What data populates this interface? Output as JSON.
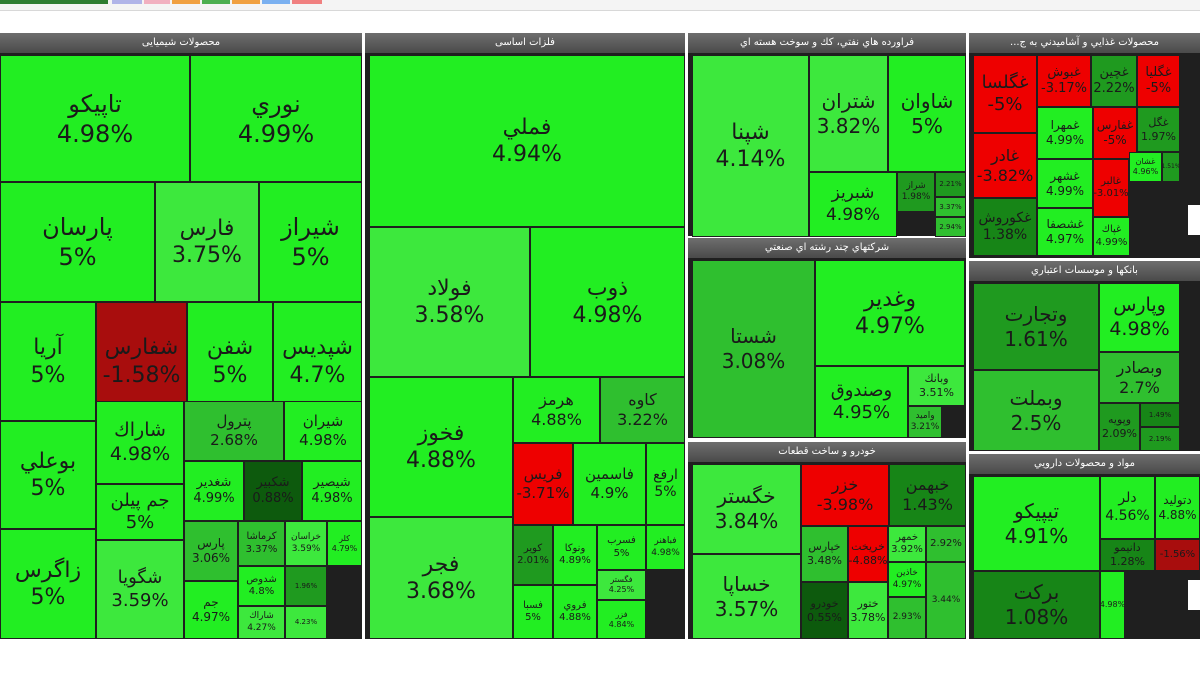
{
  "chart_data": {
    "type": "treemap",
    "title": "",
    "sectors": [
      {
        "name": "محصولات شیمیایی",
        "tiles": [
          {
            "symbol": "تاپيكو",
            "change": "4.98%",
            "value": 4.98
          },
          {
            "symbol": "نوري",
            "change": "4.99%",
            "value": 4.99
          },
          {
            "symbol": "پارسان",
            "change": "5%",
            "value": 5
          },
          {
            "symbol": "فارس",
            "change": "3.75%",
            "value": 3.75
          },
          {
            "symbol": "شيراز",
            "change": "5%",
            "value": 5
          },
          {
            "symbol": "آريا",
            "change": "5%",
            "value": 5
          },
          {
            "symbol": "شفارس",
            "change": "-1.58%",
            "value": -1.58
          },
          {
            "symbol": "شفن",
            "change": "5%",
            "value": 5
          },
          {
            "symbol": "شپديس",
            "change": "4.7%",
            "value": 4.7
          },
          {
            "symbol": "بوعلي",
            "change": "5%",
            "value": 5
          },
          {
            "symbol": "شاراك",
            "change": "4.98%",
            "value": 4.98
          },
          {
            "symbol": "پترول",
            "change": "2.68%",
            "value": 2.68
          },
          {
            "symbol": "شيران",
            "change": "4.98%",
            "value": 4.98
          },
          {
            "symbol": "جم پيلن",
            "change": "5%",
            "value": 5
          },
          {
            "symbol": "شغدير",
            "change": "4.99%",
            "value": 4.99
          },
          {
            "symbol": "شكبير",
            "change": "0.88%",
            "value": 0.88
          },
          {
            "symbol": "شيصير",
            "change": "4.98%",
            "value": 4.98
          },
          {
            "symbol": "زاگرس",
            "change": "5%",
            "value": 5
          },
          {
            "symbol": "شگويا",
            "change": "3.59%",
            "value": 3.59
          },
          {
            "symbol": "پارس",
            "change": "3.06%",
            "value": 3.06
          },
          {
            "symbol": "كرماشا",
            "change": "3.37%",
            "value": 3.37
          },
          {
            "symbol": "خراسان",
            "change": "3.59%",
            "value": 3.59
          },
          {
            "symbol": "كلر",
            "change": "4.79%",
            "value": 4.79
          },
          {
            "symbol": "شدوص",
            "change": "4.8%",
            "value": 4.8
          },
          {
            "symbol": "جم",
            "change": "4.97%",
            "value": 4.97
          },
          {
            "symbol": "شاراك",
            "change": "4.27%",
            "value": 4.27
          },
          {
            "symbol": "",
            "change": "1.96%",
            "value": 1.96
          },
          {
            "symbol": "",
            "change": "4.23%",
            "value": 4.23
          }
        ]
      },
      {
        "name": "فلزات اساسی",
        "tiles": [
          {
            "symbol": "فملي",
            "change": "4.94%",
            "value": 4.94
          },
          {
            "symbol": "فولاد",
            "change": "3.58%",
            "value": 3.58
          },
          {
            "symbol": "ذوب",
            "change": "4.98%",
            "value": 4.98
          },
          {
            "symbol": "فخوز",
            "change": "4.88%",
            "value": 4.88
          },
          {
            "symbol": "هرمز",
            "change": "4.88%",
            "value": 4.88
          },
          {
            "symbol": "كاوه",
            "change": "3.22%",
            "value": 3.22
          },
          {
            "symbol": "فريس",
            "change": "-3.71%",
            "value": -3.71
          },
          {
            "symbol": "فاسمين",
            "change": "4.9%",
            "value": 4.9
          },
          {
            "symbol": "ارفع",
            "change": "5%",
            "value": 5
          },
          {
            "symbol": "فجر",
            "change": "3.68%",
            "value": 3.68
          },
          {
            "symbol": "كوير",
            "change": "2.01%",
            "value": 2.01
          },
          {
            "symbol": "ونوكا",
            "change": "4.89%",
            "value": 4.89
          },
          {
            "symbol": "فسرب",
            "change": "5%",
            "value": 5
          },
          {
            "symbol": "فباهنر",
            "change": "4.98%",
            "value": 4.98
          },
          {
            "symbol": "فسبا",
            "change": "5%",
            "value": 5
          },
          {
            "symbol": "فروي",
            "change": "4.88%",
            "value": 4.88
          },
          {
            "symbol": "فگستر",
            "change": "4.25%",
            "value": 4.25
          },
          {
            "symbol": "فزر",
            "change": "4.84%",
            "value": 4.84
          }
        ]
      },
      {
        "name": "فراورده هاي نفتي، كك و سوخت هسته اي",
        "tiles": [
          {
            "symbol": "شپنا",
            "change": "4.14%",
            "value": 4.14
          },
          {
            "symbol": "شتران",
            "change": "3.82%",
            "value": 3.82
          },
          {
            "symbol": "شاوان",
            "change": "5%",
            "value": 5
          },
          {
            "symbol": "شبريز",
            "change": "4.98%",
            "value": 4.98
          },
          {
            "symbol": "شراز",
            "change": "1.98%",
            "value": 1.98
          },
          {
            "symbol": "",
            "change": "2.21%",
            "value": 2.21
          },
          {
            "symbol": "",
            "change": "3.37%",
            "value": 3.37
          },
          {
            "symbol": "",
            "change": "2.94%",
            "value": 2.94
          }
        ]
      },
      {
        "name": "محصولات غذايي و آشاميدني به ج...",
        "tiles": [
          {
            "symbol": "غگلسا",
            "change": "-5%",
            "value": -5
          },
          {
            "symbol": "غبوش",
            "change": "-3.17%",
            "value": -3.17
          },
          {
            "symbol": "غچين",
            "change": "2.22%",
            "value": 2.22
          },
          {
            "symbol": "غگليا",
            "change": "-5%",
            "value": -5
          },
          {
            "symbol": "غمهرا",
            "change": "4.99%",
            "value": 4.99
          },
          {
            "symbol": "غفارس",
            "change": "-5%",
            "value": -5
          },
          {
            "symbol": "غگل",
            "change": "1.97%",
            "value": 1.97
          },
          {
            "symbol": "غادر",
            "change": "-3.82%",
            "value": -3.82
          },
          {
            "symbol": "غشهر",
            "change": "4.99%",
            "value": 4.99
          },
          {
            "symbol": "غالبر",
            "change": "-3.01%",
            "value": -3.01
          },
          {
            "symbol": "غشان",
            "change": "4.96%",
            "value": 4.96
          },
          {
            "symbol": "غكوروش",
            "change": "1.38%",
            "value": 1.38
          },
          {
            "symbol": "غشصفا",
            "change": "4.97%",
            "value": 4.97
          },
          {
            "symbol": "غپاك",
            "change": "4.99%",
            "value": 4.99
          },
          {
            "symbol": "",
            "change": "1.51%",
            "value": 1.51
          }
        ]
      },
      {
        "name": "شركتهاي چند رشته اي صنعتي",
        "tiles": [
          {
            "symbol": "شستا",
            "change": "3.08%",
            "value": 3.08
          },
          {
            "symbol": "وغدير",
            "change": "4.97%",
            "value": 4.97
          },
          {
            "symbol": "وصندوق",
            "change": "4.95%",
            "value": 4.95
          },
          {
            "symbol": "وبانك",
            "change": "3.51%",
            "value": 3.51
          },
          {
            "symbol": "واميد",
            "change": "3.21%",
            "value": 3.21
          }
        ]
      },
      {
        "name": "بانكها و موسسات اعتباري",
        "tiles": [
          {
            "symbol": "وتجارت",
            "change": "1.61%",
            "value": 1.61
          },
          {
            "symbol": "وپارس",
            "change": "4.98%",
            "value": 4.98
          },
          {
            "symbol": "وبصادر",
            "change": "2.7%",
            "value": 2.7
          },
          {
            "symbol": "وبملت",
            "change": "2.5%",
            "value": 2.5
          },
          {
            "symbol": "وپويه",
            "change": "2.09%",
            "value": 2.09
          },
          {
            "symbol": "",
            "change": "1.49%",
            "value": 1.49
          },
          {
            "symbol": "",
            "change": "2.19%",
            "value": 2.19
          }
        ]
      },
      {
        "name": "خودرو و ساخت قطعات",
        "tiles": [
          {
            "symbol": "خگستر",
            "change": "3.84%",
            "value": 3.84
          },
          {
            "symbol": "خزر",
            "change": "-3.98%",
            "value": -3.98
          },
          {
            "symbol": "خبهمن",
            "change": "1.43%",
            "value": 1.43
          },
          {
            "symbol": "خساپا",
            "change": "3.57%",
            "value": 3.57
          },
          {
            "symbol": "خپارس",
            "change": "3.48%",
            "value": 3.48
          },
          {
            "symbol": "خريخت",
            "change": "-4.88%",
            "value": -4.88
          },
          {
            "symbol": "خمهر",
            "change": "3.92%",
            "value": 3.92
          },
          {
            "symbol": "",
            "change": "2.92%",
            "value": 2.92
          },
          {
            "symbol": "خودرو",
            "change": "0.55%",
            "value": 0.55
          },
          {
            "symbol": "ختور",
            "change": "3.78%",
            "value": 3.78
          },
          {
            "symbol": "خاذين",
            "change": "4.97%",
            "value": 4.97
          },
          {
            "symbol": "",
            "change": "2.93%",
            "value": 2.93
          },
          {
            "symbol": "",
            "change": "3.44%",
            "value": 3.44
          }
        ]
      },
      {
        "name": "مواد و محصولات دارويي",
        "tiles": [
          {
            "symbol": "تيپيكو",
            "change": "4.91%",
            "value": 4.91
          },
          {
            "symbol": "دلر",
            "change": "4.56%",
            "value": 4.56
          },
          {
            "symbol": "دتوليد",
            "change": "4.88%",
            "value": 4.88
          },
          {
            "symbol": "بركت",
            "change": "1.08%",
            "value": 1.08
          },
          {
            "symbol": "دانيمو",
            "change": "1.28%",
            "value": 1.28
          },
          {
            "symbol": "",
            "change": "-1.56%",
            "value": -1.56
          },
          {
            "symbol": "",
            "change": "4.98%",
            "value": 4.98
          }
        ]
      }
    ]
  }
}
